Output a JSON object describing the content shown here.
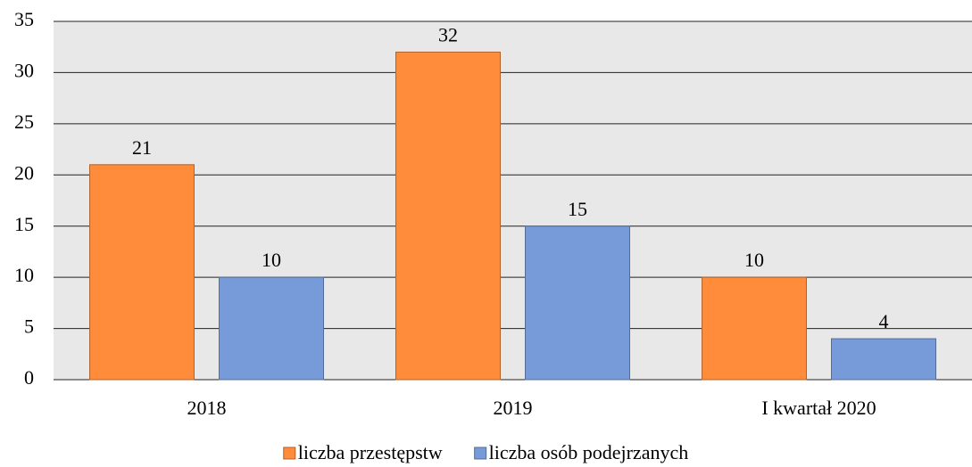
{
  "chart_data": {
    "type": "bar",
    "categories": [
      "2018",
      "2019",
      "I kwartał 2020"
    ],
    "series": [
      {
        "name": "liczba przestępstw",
        "color": "#ff8c3b",
        "values": [
          21,
          32,
          10
        ]
      },
      {
        "name": "liczba osób podejrzanych",
        "color": "#779bd8",
        "values": [
          10,
          15,
          4
        ]
      }
    ],
    "ylim": [
      0,
      35
    ],
    "yticks": [
      0,
      5,
      10,
      15,
      20,
      25,
      30,
      35
    ],
    "grid": true,
    "legend": "bottom",
    "data_labels": true
  }
}
